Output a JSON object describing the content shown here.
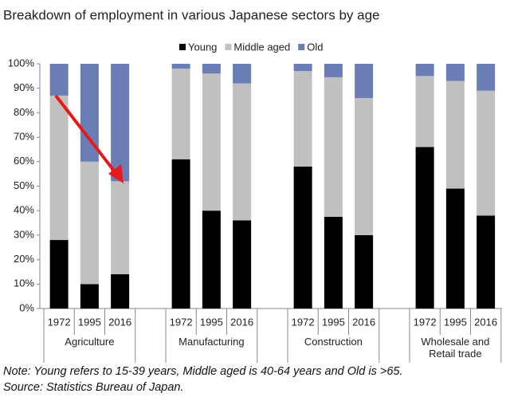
{
  "chart_data": {
    "type": "stacked-bar",
    "title": "Breakdown of employment in various Japanese sectors by age",
    "categories": [
      "1972",
      "1995",
      "2016",
      "1972",
      "1995",
      "2016",
      "1972",
      "1995",
      "2016",
      "1972",
      "1995",
      "2016"
    ],
    "groups": [
      "Agriculture",
      "Manufacturing",
      "Construction",
      "Wholesale and Retail trade"
    ],
    "series": [
      {
        "name": "Young",
        "color": "#000000",
        "values": [
          28,
          10,
          14,
          61,
          40,
          36,
          58,
          37.5,
          30,
          66,
          49,
          38
        ]
      },
      {
        "name": "Middle aged",
        "color": "#c0c0c0",
        "values": [
          59,
          50,
          38,
          37,
          56,
          56,
          39,
          57,
          56,
          29,
          44,
          51
        ]
      },
      {
        "name": "Old",
        "color": "#6a7db5",
        "values": [
          13,
          40,
          48,
          2,
          4,
          8,
          3,
          5.5,
          14,
          5,
          7,
          11
        ]
      }
    ],
    "ylim": [
      0,
      100
    ],
    "yticks": [
      {
        "value": 0,
        "label": "0%"
      },
      {
        "value": 10,
        "label": "10%"
      },
      {
        "value": 20,
        "label": "20%"
      },
      {
        "value": 30,
        "label": "30%"
      },
      {
        "value": 40,
        "label": "40%"
      },
      {
        "value": 50,
        "label": "50%"
      },
      {
        "value": 60,
        "label": "60%"
      },
      {
        "value": 70,
        "label": "70%"
      },
      {
        "value": 80,
        "label": "80%"
      },
      {
        "value": 90,
        "label": "90%"
      },
      {
        "value": 100,
        "label": "100%"
      }
    ],
    "legend": "top",
    "notes": [
      "Note: Young refers to 15-39 years, Middle aged is 40-64 years and Old is >65.",
      "Source:  Statistics Bureau of Japan."
    ]
  }
}
